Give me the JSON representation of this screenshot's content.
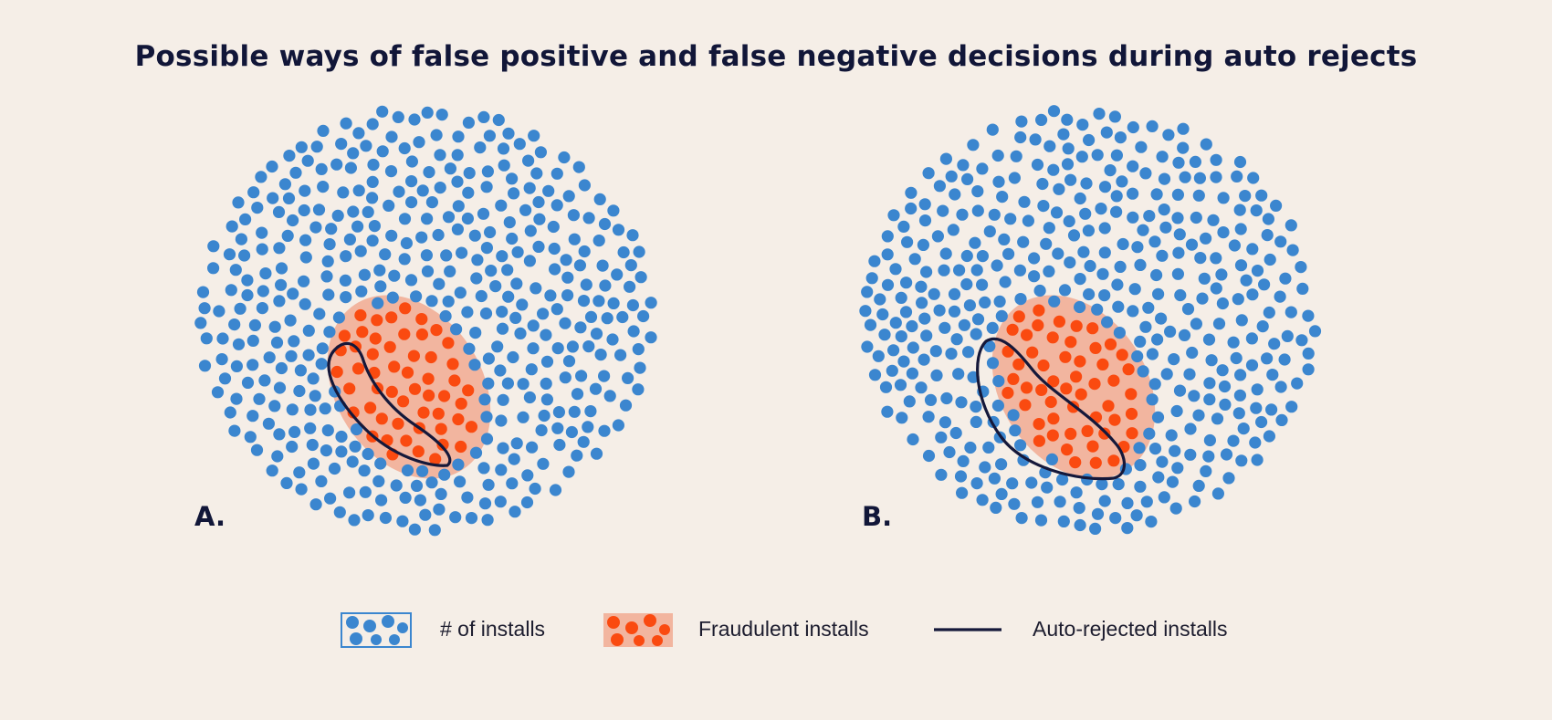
{
  "title": "Possible ways of false positive and false negative decisions during auto rejects",
  "panels": [
    {
      "label": "A."
    },
    {
      "label": "B."
    }
  ],
  "legend": {
    "installs": "# of installs",
    "fraudulent": "Fraudulent installs",
    "rejected": "Auto-rejected installs"
  },
  "colors": {
    "background": "#f5eee7",
    "install_dot": "#3b86cf",
    "fraud_dot": "#fa4a10",
    "fraud_region": "#f2b59f",
    "reject_outline": "#15183a",
    "title": "#111638"
  }
}
